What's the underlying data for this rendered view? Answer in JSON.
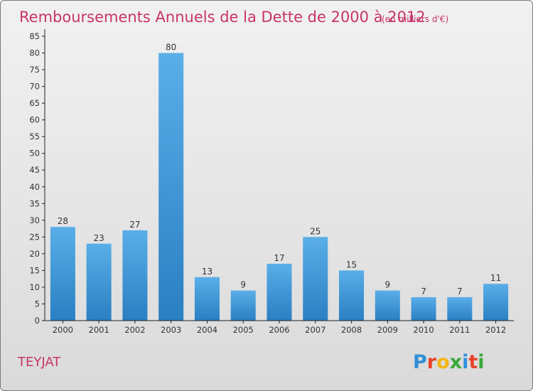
{
  "chart_data": {
    "type": "bar",
    "title": "Remboursements Annuels de la Dette de 2000 à 2012",
    "subtitle": "(en milliers d'€)",
    "xlabel": "",
    "ylabel": "",
    "categories": [
      "2000",
      "2001",
      "2002",
      "2003",
      "2004",
      "2005",
      "2006",
      "2007",
      "2008",
      "2009",
      "2010",
      "2011",
      "2012"
    ],
    "values": [
      28,
      23,
      27,
      80,
      13,
      9,
      17,
      25,
      15,
      9,
      7,
      7,
      11
    ],
    "ylim": [
      0,
      85
    ],
    "yticks": [
      0,
      5,
      10,
      15,
      20,
      25,
      30,
      35,
      40,
      45,
      50,
      55,
      60,
      65,
      70,
      75,
      80,
      85
    ],
    "grid": false,
    "data_labels": true,
    "bar_color_top": "#5aaee8",
    "bar_color_bottom": "#2a7fc2"
  },
  "footer": {
    "place": "TEYJAT",
    "logo_letters": [
      "P",
      "r",
      "o",
      "x",
      "i",
      "t",
      "i"
    ],
    "logo_colors": [
      "#2f8fd8",
      "#e8432d",
      "#f3b612",
      "#3aa83a",
      "#2f8fd8",
      "#e8432d",
      "#3aa83a"
    ]
  },
  "colors": {
    "title": "#c8336a",
    "axis": "#222222"
  }
}
